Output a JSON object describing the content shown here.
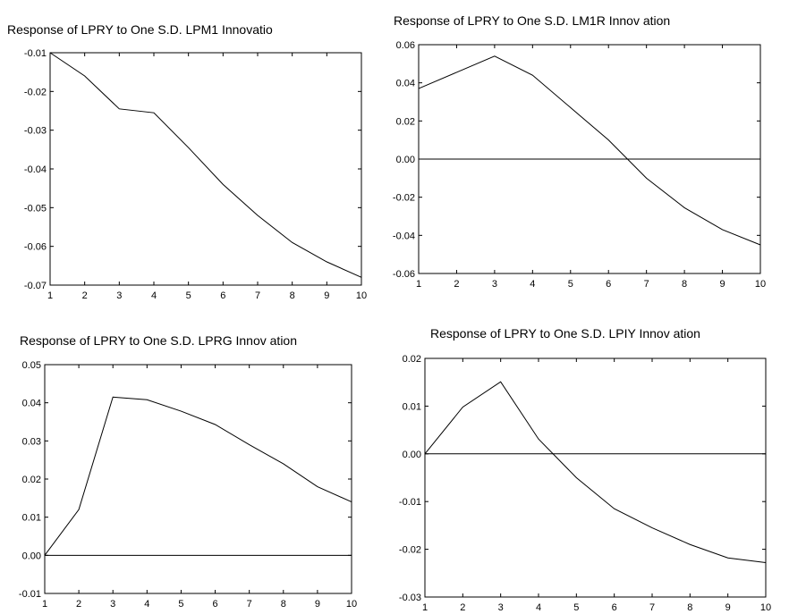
{
  "chart_data": [
    {
      "type": "line",
      "title": "Response of LPRY to One S.D. LPM1 Innovatio",
      "x": [
        1,
        2,
        3,
        4,
        5,
        6,
        7,
        8,
        9,
        10
      ],
      "series": [
        {
          "values": [
            -0.01,
            -0.016,
            -0.0245,
            -0.0255,
            -0.0345,
            -0.044,
            -0.052,
            -0.059,
            -0.064,
            -0.068
          ]
        }
      ],
      "xlim": [
        1,
        10
      ],
      "ylim": [
        -0.07,
        -0.01
      ],
      "xticks": [
        "1",
        "2",
        "3",
        "4",
        "5",
        "6",
        "7",
        "8",
        "9",
        "10"
      ],
      "yticks": [
        "-0.01",
        "-0.02",
        "-0.03",
        "-0.04",
        "-0.05",
        "-0.06",
        "-0.07"
      ],
      "zero_line": false,
      "grid": false,
      "legend": "none"
    },
    {
      "type": "line",
      "title": "Response of LPRY to One S.D. LM1R Innov ation",
      "x": [
        1,
        2,
        3,
        4,
        5,
        6,
        7,
        8,
        9,
        10
      ],
      "series": [
        {
          "values": [
            0.037,
            0.0455,
            0.054,
            0.044,
            0.027,
            0.01,
            -0.01,
            -0.0255,
            -0.037,
            -0.045
          ]
        }
      ],
      "xlim": [
        1,
        10
      ],
      "ylim": [
        -0.06,
        0.06
      ],
      "xticks": [
        "1",
        "2",
        "3",
        "4",
        "5",
        "6",
        "7",
        "8",
        "9",
        "10"
      ],
      "yticks": [
        "0.06",
        "0.04",
        "0.02",
        "0.00",
        "-0.02",
        "-0.04",
        "-0.06"
      ],
      "zero_line": true,
      "grid": false,
      "legend": "none"
    },
    {
      "type": "line",
      "title": "Response of LPRY to One S.D. LPRG Innov ation",
      "x": [
        1,
        2,
        3,
        4,
        5,
        6,
        7,
        8,
        9,
        10
      ],
      "series": [
        {
          "values": [
            0.0,
            0.012,
            0.0415,
            0.0408,
            0.0378,
            0.0343,
            0.029,
            0.024,
            0.018,
            0.014
          ]
        }
      ],
      "xlim": [
        1,
        10
      ],
      "ylim": [
        -0.01,
        0.05
      ],
      "xticks": [
        "1",
        "2",
        "3",
        "4",
        "5",
        "6",
        "7",
        "8",
        "9",
        "10"
      ],
      "yticks": [
        "0.05",
        "0.04",
        "0.03",
        "0.02",
        "0.01",
        "0.00",
        "-0.01"
      ],
      "zero_line": true,
      "grid": false,
      "legend": "none"
    },
    {
      "type": "line",
      "title": "Response of LPRY to One S.D. LPIY Innov ation",
      "x": [
        1,
        2,
        3,
        4,
        5,
        6,
        7,
        8,
        9,
        10
      ],
      "series": [
        {
          "values": [
            0.0,
            0.0098,
            0.0151,
            0.0031,
            -0.005,
            -0.0115,
            -0.0155,
            -0.019,
            -0.0218,
            -0.0228
          ]
        }
      ],
      "xlim": [
        1,
        10
      ],
      "ylim": [
        -0.03,
        0.02
      ],
      "xticks": [
        "1",
        "2",
        "3",
        "4",
        "5",
        "6",
        "7",
        "8",
        "9",
        "10"
      ],
      "yticks": [
        "0.02",
        "0.01",
        "0.00",
        "-0.01",
        "-0.02",
        "-0.03"
      ],
      "zero_line": true,
      "grid": false,
      "legend": "none"
    }
  ]
}
